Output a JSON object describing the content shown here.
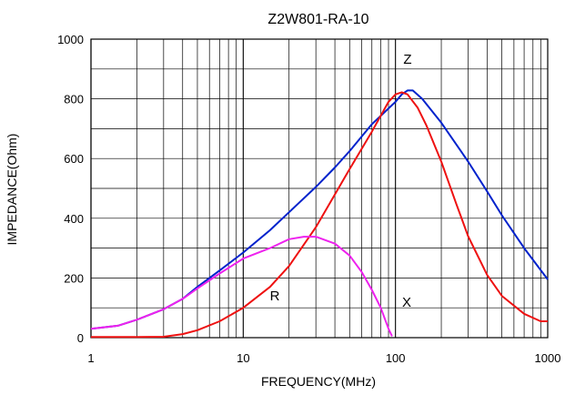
{
  "chart_data": {
    "type": "line",
    "title": "Z2W801-RA-10",
    "xlabel": "FREQUENCY(MHz)",
    "ylabel": "IMPEDANCE(Ohm)",
    "x_scale": "log",
    "xlim": [
      1,
      1000
    ],
    "ylim": [
      0,
      1000
    ],
    "x_ticks": [
      "1",
      "10",
      "100",
      "1000"
    ],
    "y_ticks": [
      "0",
      "200",
      "400",
      "600",
      "800",
      "1000"
    ],
    "grid": true,
    "series": [
      {
        "name": "Z",
        "color": "#0022cc",
        "points": [
          [
            1,
            30
          ],
          [
            1.5,
            40
          ],
          [
            2,
            60
          ],
          [
            3,
            95
          ],
          [
            4,
            130
          ],
          [
            5,
            170
          ],
          [
            7,
            225
          ],
          [
            10,
            285
          ],
          [
            15,
            360
          ],
          [
            20,
            420
          ],
          [
            30,
            505
          ],
          [
            40,
            570
          ],
          [
            50,
            625
          ],
          [
            70,
            715
          ],
          [
            100,
            790
          ],
          [
            110,
            815
          ],
          [
            120,
            828
          ],
          [
            130,
            828
          ],
          [
            150,
            800
          ],
          [
            200,
            720
          ],
          [
            300,
            590
          ],
          [
            400,
            490
          ],
          [
            500,
            410
          ],
          [
            700,
            300
          ],
          [
            1000,
            195
          ]
        ]
      },
      {
        "name": "R",
        "color": "#ee1111",
        "points": [
          [
            1,
            2
          ],
          [
            2,
            2
          ],
          [
            3,
            3
          ],
          [
            4,
            12
          ],
          [
            5,
            25
          ],
          [
            7,
            55
          ],
          [
            10,
            100
          ],
          [
            15,
            170
          ],
          [
            20,
            240
          ],
          [
            30,
            370
          ],
          [
            40,
            480
          ],
          [
            50,
            565
          ],
          [
            70,
            690
          ],
          [
            90,
            790
          ],
          [
            100,
            815
          ],
          [
            110,
            822
          ],
          [
            120,
            815
          ],
          [
            140,
            770
          ],
          [
            160,
            710
          ],
          [
            200,
            590
          ],
          [
            250,
            450
          ],
          [
            300,
            340
          ],
          [
            400,
            210
          ],
          [
            500,
            140
          ],
          [
            700,
            80
          ],
          [
            900,
            55
          ],
          [
            1000,
            55
          ]
        ]
      },
      {
        "name": "X",
        "color": "#ee22ee",
        "points": [
          [
            1,
            30
          ],
          [
            1.5,
            40
          ],
          [
            2,
            60
          ],
          [
            3,
            95
          ],
          [
            4,
            130
          ],
          [
            5,
            165
          ],
          [
            7,
            215
          ],
          [
            10,
            265
          ],
          [
            15,
            300
          ],
          [
            20,
            330
          ],
          [
            25,
            338
          ],
          [
            30,
            338
          ],
          [
            40,
            315
          ],
          [
            50,
            275
          ],
          [
            60,
            220
          ],
          [
            70,
            160
          ],
          [
            80,
            100
          ],
          [
            90,
            30
          ],
          [
            95,
            5
          ]
        ]
      }
    ]
  }
}
